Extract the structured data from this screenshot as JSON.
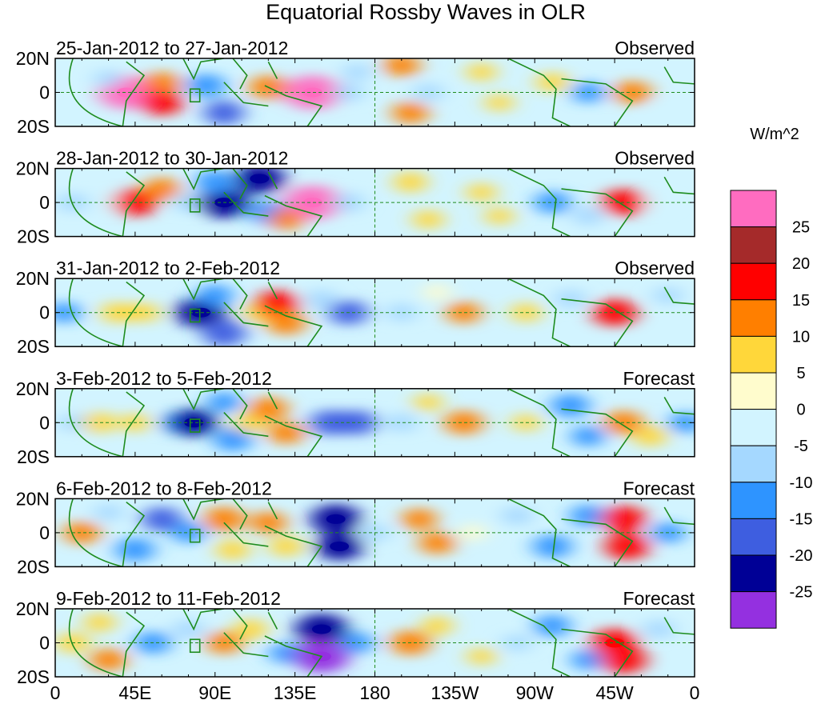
{
  "chart_data": {
    "type": "heatmap",
    "title": "Equatorial Rossby Waves in OLR",
    "units_label": "W/m^2",
    "x_ticks": [
      "0",
      "45E",
      "90E",
      "135E",
      "180",
      "135W",
      "90W",
      "45W",
      "0"
    ],
    "x_tick_lon": [
      0,
      45,
      90,
      135,
      180,
      225,
      270,
      315,
      360
    ],
    "y_ticks": [
      "20N",
      "0",
      "20S"
    ],
    "y_tick_lat": [
      20,
      0,
      -20
    ],
    "lat_range": [
      -20,
      20
    ],
    "lon_range": [
      0,
      360
    ],
    "colorbar": {
      "labels": [
        "25",
        "20",
        "15",
        "10",
        "5",
        "0",
        "-5",
        "-10",
        "-15",
        "-20",
        "-25"
      ],
      "colors": [
        "#ff6cc0",
        "#a52a2a",
        "#ff0000",
        "#ff7f00",
        "#ffd73a",
        "#fffccd",
        "#d2f4ff",
        "#a5d8ff",
        "#2e94ff",
        "#3e5ee0",
        "#000096",
        "#9430e0"
      ]
    },
    "panels": [
      {
        "period": "25-Jan-2012 to 27-Jan-2012",
        "label": "Observed",
        "anomalies": [
          {
            "lon": 40,
            "lat": 0,
            "value": 26
          },
          {
            "lon": 60,
            "lat": 5,
            "value": 14
          },
          {
            "lon": 60,
            "lat": -6,
            "value": 16
          },
          {
            "lon": 30,
            "lat": 8,
            "value": -6
          },
          {
            "lon": 85,
            "lat": 4,
            "value": -14
          },
          {
            "lon": 95,
            "lat": -12,
            "value": -15
          },
          {
            "lon": 120,
            "lat": 3,
            "value": 14
          },
          {
            "lon": 145,
            "lat": 0,
            "value": 27
          },
          {
            "lon": 165,
            "lat": 0,
            "value": -8
          },
          {
            "lon": 170,
            "lat": 12,
            "value": -6
          },
          {
            "lon": 195,
            "lat": 16,
            "value": 12
          },
          {
            "lon": 200,
            "lat": -12,
            "value": 12
          },
          {
            "lon": 210,
            "lat": 0,
            "value": -7
          },
          {
            "lon": 240,
            "lat": 12,
            "value": 7
          },
          {
            "lon": 250,
            "lat": -6,
            "value": 6
          },
          {
            "lon": 280,
            "lat": 6,
            "value": 9
          },
          {
            "lon": 300,
            "lat": 0,
            "value": -10
          },
          {
            "lon": 325,
            "lat": 0,
            "value": 13
          },
          {
            "lon": 345,
            "lat": -10,
            "value": -4
          }
        ]
      },
      {
        "period": "28-Jan-2012 to 30-Jan-2012",
        "label": "Observed",
        "anomalies": [
          {
            "lon": 10,
            "lat": 0,
            "value": -8
          },
          {
            "lon": 30,
            "lat": 0,
            "value": -4
          },
          {
            "lon": 45,
            "lat": 0,
            "value": 18
          },
          {
            "lon": 60,
            "lat": 8,
            "value": 12
          },
          {
            "lon": 75,
            "lat": 0,
            "value": -8
          },
          {
            "lon": 95,
            "lat": 0,
            "value": -24
          },
          {
            "lon": 90,
            "lat": 12,
            "value": -14
          },
          {
            "lon": 115,
            "lat": 14,
            "value": -22
          },
          {
            "lon": 120,
            "lat": -6,
            "value": -14
          },
          {
            "lon": 145,
            "lat": 0,
            "value": 27
          },
          {
            "lon": 130,
            "lat": -10,
            "value": 11
          },
          {
            "lon": 165,
            "lat": 0,
            "value": -9
          },
          {
            "lon": 200,
            "lat": 12,
            "value": 10
          },
          {
            "lon": 210,
            "lat": -10,
            "value": 8
          },
          {
            "lon": 240,
            "lat": 6,
            "value": 7
          },
          {
            "lon": 250,
            "lat": -8,
            "value": 6
          },
          {
            "lon": 280,
            "lat": 0,
            "value": -12
          },
          {
            "lon": 300,
            "lat": -8,
            "value": -8
          },
          {
            "lon": 320,
            "lat": 0,
            "value": 18
          },
          {
            "lon": 340,
            "lat": 0,
            "value": -4
          }
        ]
      },
      {
        "period": "31-Jan-2012 to 2-Feb-2012",
        "label": "Observed",
        "anomalies": [
          {
            "lon": 5,
            "lat": 0,
            "value": -10
          },
          {
            "lon": 35,
            "lat": 0,
            "value": 10
          },
          {
            "lon": 50,
            "lat": 0,
            "value": 8
          },
          {
            "lon": 75,
            "lat": 0,
            "value": -6
          },
          {
            "lon": 82,
            "lat": 0,
            "value": -23
          },
          {
            "lon": 95,
            "lat": -12,
            "value": -18
          },
          {
            "lon": 90,
            "lat": 10,
            "value": -12
          },
          {
            "lon": 115,
            "lat": 0,
            "value": 9
          },
          {
            "lon": 125,
            "lat": 5,
            "value": 18
          },
          {
            "lon": 130,
            "lat": -6,
            "value": 14
          },
          {
            "lon": 150,
            "lat": 8,
            "value": -8
          },
          {
            "lon": 165,
            "lat": 0,
            "value": -15
          },
          {
            "lon": 195,
            "lat": 0,
            "value": -7
          },
          {
            "lon": 230,
            "lat": 0,
            "value": 11
          },
          {
            "lon": 215,
            "lat": 12,
            "value": 5
          },
          {
            "lon": 265,
            "lat": 0,
            "value": 8
          },
          {
            "lon": 290,
            "lat": 8,
            "value": -8
          },
          {
            "lon": 315,
            "lat": 0,
            "value": 18
          },
          {
            "lon": 345,
            "lat": 10,
            "value": -6
          }
        ]
      },
      {
        "period": "3-Feb-2012 to 5-Feb-2012",
        "label": "Forecast",
        "anomalies": [
          {
            "lon": 10,
            "lat": 0,
            "value": -6
          },
          {
            "lon": 25,
            "lat": 0,
            "value": 10
          },
          {
            "lon": 45,
            "lat": 0,
            "value": 7
          },
          {
            "lon": 70,
            "lat": 0,
            "value": -12
          },
          {
            "lon": 78,
            "lat": 0,
            "value": -20
          },
          {
            "lon": 100,
            "lat": -10,
            "value": -14
          },
          {
            "lon": 95,
            "lat": 12,
            "value": -10
          },
          {
            "lon": 110,
            "lat": 0,
            "value": 10
          },
          {
            "lon": 120,
            "lat": 8,
            "value": 14
          },
          {
            "lon": 130,
            "lat": -6,
            "value": 12
          },
          {
            "lon": 155,
            "lat": 0,
            "value": -16
          },
          {
            "lon": 170,
            "lat": 0,
            "value": -15
          },
          {
            "lon": 195,
            "lat": 0,
            "value": -8
          },
          {
            "lon": 230,
            "lat": 0,
            "value": 14
          },
          {
            "lon": 210,
            "lat": 12,
            "value": 6
          },
          {
            "lon": 265,
            "lat": 0,
            "value": 6
          },
          {
            "lon": 290,
            "lat": 10,
            "value": -14
          },
          {
            "lon": 300,
            "lat": -8,
            "value": -10
          },
          {
            "lon": 320,
            "lat": 0,
            "value": 14
          },
          {
            "lon": 335,
            "lat": -8,
            "value": 10
          },
          {
            "lon": 355,
            "lat": 0,
            "value": -10
          }
        ]
      },
      {
        "period": "6-Feb-2012 to 8-Feb-2012",
        "label": "Forecast",
        "anomalies": [
          {
            "lon": 15,
            "lat": 0,
            "value": 12
          },
          {
            "lon": 30,
            "lat": 12,
            "value": -6
          },
          {
            "lon": 45,
            "lat": -10,
            "value": -14
          },
          {
            "lon": 60,
            "lat": 8,
            "value": -15
          },
          {
            "lon": 75,
            "lat": 0,
            "value": -10
          },
          {
            "lon": 95,
            "lat": 8,
            "value": 15
          },
          {
            "lon": 100,
            "lat": -10,
            "value": 10
          },
          {
            "lon": 120,
            "lat": 6,
            "value": 12
          },
          {
            "lon": 130,
            "lat": -8,
            "value": 10
          },
          {
            "lon": 158,
            "lat": 8,
            "value": -22
          },
          {
            "lon": 160,
            "lat": -8,
            "value": -20
          },
          {
            "lon": 180,
            "lat": 0,
            "value": -6
          },
          {
            "lon": 205,
            "lat": 8,
            "value": 11
          },
          {
            "lon": 215,
            "lat": -6,
            "value": 12
          },
          {
            "lon": 235,
            "lat": 0,
            "value": 5
          },
          {
            "lon": 260,
            "lat": 10,
            "value": -8
          },
          {
            "lon": 280,
            "lat": -8,
            "value": -14
          },
          {
            "lon": 300,
            "lat": 10,
            "value": -12
          },
          {
            "lon": 320,
            "lat": 8,
            "value": 18
          },
          {
            "lon": 322,
            "lat": -8,
            "value": 18
          },
          {
            "lon": 345,
            "lat": 0,
            "value": -10
          }
        ]
      },
      {
        "period": "9-Feb-2012 to 11-Feb-2012",
        "label": "Forecast",
        "anomalies": [
          {
            "lon": 10,
            "lat": 0,
            "value": 10
          },
          {
            "lon": 30,
            "lat": -10,
            "value": 12
          },
          {
            "lon": 25,
            "lat": 12,
            "value": 8
          },
          {
            "lon": 55,
            "lat": 0,
            "value": -12
          },
          {
            "lon": 75,
            "lat": 8,
            "value": -8
          },
          {
            "lon": 95,
            "lat": 0,
            "value": 12
          },
          {
            "lon": 110,
            "lat": 8,
            "value": 10
          },
          {
            "lon": 130,
            "lat": -6,
            "value": -10
          },
          {
            "lon": 150,
            "lat": 8,
            "value": -24
          },
          {
            "lon": 150,
            "lat": -8,
            "value": -26
          },
          {
            "lon": 170,
            "lat": 0,
            "value": -10
          },
          {
            "lon": 200,
            "lat": 0,
            "value": 15
          },
          {
            "lon": 215,
            "lat": 10,
            "value": 8
          },
          {
            "lon": 240,
            "lat": -8,
            "value": 6
          },
          {
            "lon": 260,
            "lat": 0,
            "value": -6
          },
          {
            "lon": 280,
            "lat": 10,
            "value": -12
          },
          {
            "lon": 300,
            "lat": -10,
            "value": -10
          },
          {
            "lon": 315,
            "lat": 0,
            "value": 20
          },
          {
            "lon": 320,
            "lat": -10,
            "value": 19
          },
          {
            "lon": 340,
            "lat": 8,
            "value": -8
          }
        ]
      }
    ]
  }
}
